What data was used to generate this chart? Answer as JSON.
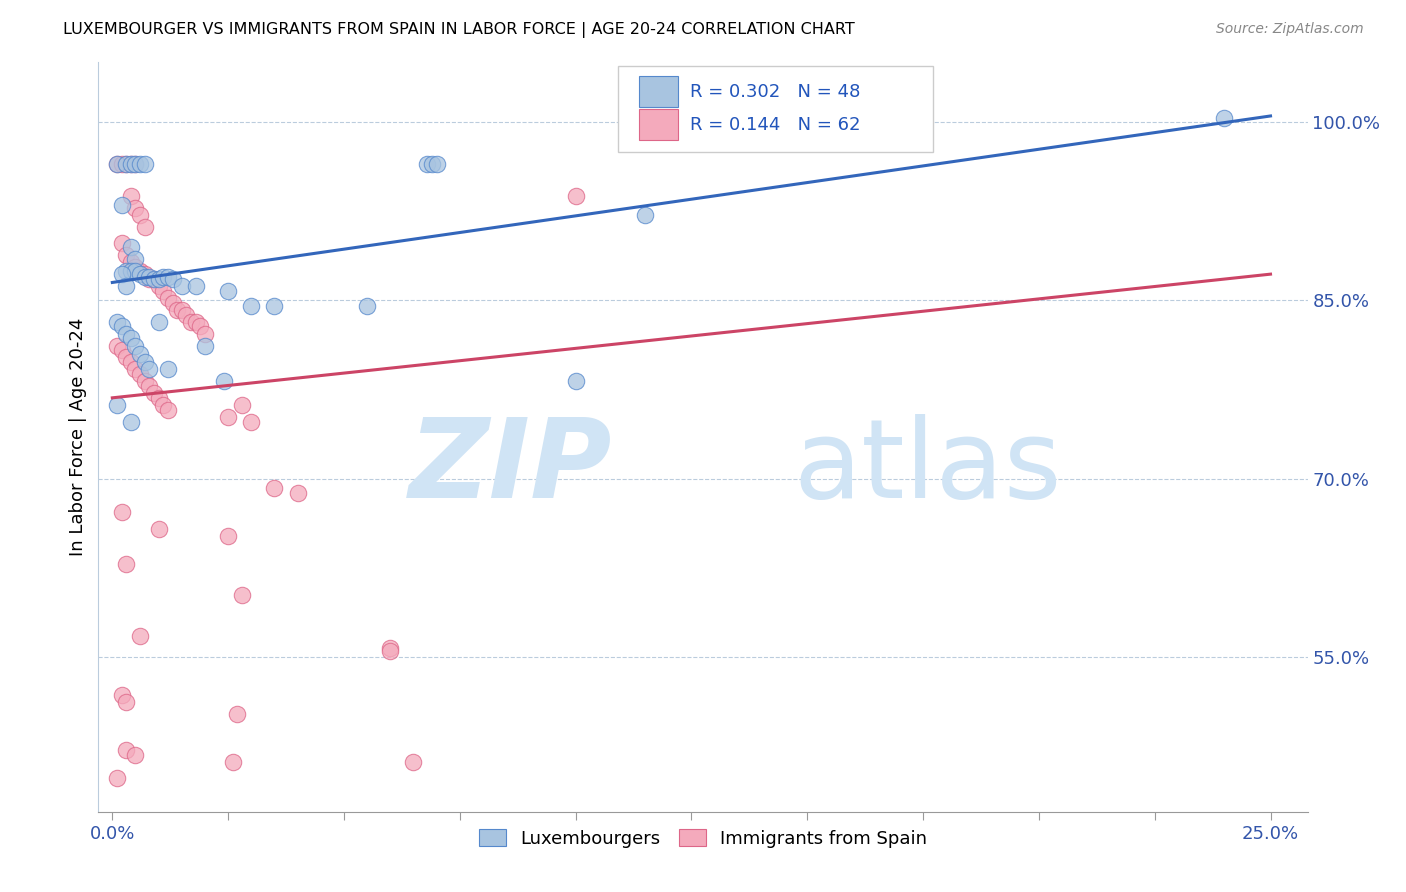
{
  "title": "LUXEMBOURGER VS IMMIGRANTS FROM SPAIN IN LABOR FORCE | AGE 20-24 CORRELATION CHART",
  "source": "Source: ZipAtlas.com",
  "ylabel": "In Labor Force | Age 20-24",
  "ytick_labels": [
    "100.0%",
    "85.0%",
    "70.0%",
    "55.0%"
  ],
  "ytick_values": [
    1.0,
    0.85,
    0.7,
    0.55
  ],
  "xtick_labels": [
    "0.0%",
    "25.0%"
  ],
  "xtick_values": [
    0.0,
    0.25
  ],
  "xlim": [
    -0.003,
    0.258
  ],
  "ylim": [
    0.42,
    1.05
  ],
  "blue_r": 0.302,
  "blue_n": 48,
  "pink_r": 0.144,
  "pink_n": 62,
  "blue_color": "#A8C4E0",
  "pink_color": "#F4AABC",
  "blue_edge_color": "#5588CC",
  "pink_edge_color": "#DD6688",
  "blue_line_color": "#3366BB",
  "pink_line_color": "#CC4466",
  "watermark_zip": "ZIP",
  "watermark_atlas": "atlas",
  "watermark_color": "#D0E4F5",
  "legend_label_blue": "Luxembourgers",
  "legend_label_pink": "Immigrants from Spain",
  "blue_line_x": [
    0.0,
    0.25
  ],
  "blue_line_y": [
    0.865,
    1.005
  ],
  "pink_line_x": [
    0.0,
    0.25
  ],
  "pink_line_y": [
    0.768,
    0.872
  ],
  "blue_scatter": [
    [
      0.001,
      0.965
    ],
    [
      0.003,
      0.965
    ],
    [
      0.004,
      0.965
    ],
    [
      0.005,
      0.965
    ],
    [
      0.006,
      0.965
    ],
    [
      0.007,
      0.965
    ],
    [
      0.068,
      0.965
    ],
    [
      0.069,
      0.965
    ],
    [
      0.07,
      0.965
    ],
    [
      0.002,
      0.93
    ],
    [
      0.004,
      0.895
    ],
    [
      0.005,
      0.885
    ],
    [
      0.003,
      0.875
    ],
    [
      0.004,
      0.875
    ],
    [
      0.005,
      0.875
    ],
    [
      0.006,
      0.872
    ],
    [
      0.007,
      0.87
    ],
    [
      0.008,
      0.87
    ],
    [
      0.009,
      0.868
    ],
    [
      0.01,
      0.868
    ],
    [
      0.011,
      0.87
    ],
    [
      0.012,
      0.87
    ],
    [
      0.013,
      0.868
    ],
    [
      0.015,
      0.862
    ],
    [
      0.018,
      0.862
    ],
    [
      0.025,
      0.858
    ],
    [
      0.03,
      0.845
    ],
    [
      0.035,
      0.845
    ],
    [
      0.055,
      0.845
    ],
    [
      0.001,
      0.832
    ],
    [
      0.002,
      0.828
    ],
    [
      0.003,
      0.822
    ],
    [
      0.004,
      0.818
    ],
    [
      0.005,
      0.812
    ],
    [
      0.006,
      0.805
    ],
    [
      0.007,
      0.798
    ],
    [
      0.008,
      0.792
    ],
    [
      0.012,
      0.792
    ],
    [
      0.024,
      0.782
    ],
    [
      0.1,
      0.782
    ],
    [
      0.001,
      0.762
    ],
    [
      0.004,
      0.748
    ],
    [
      0.115,
      0.922
    ],
    [
      0.24,
      1.003
    ],
    [
      0.002,
      0.872
    ],
    [
      0.003,
      0.862
    ],
    [
      0.01,
      0.832
    ],
    [
      0.02,
      0.812
    ]
  ],
  "pink_scatter": [
    [
      0.001,
      0.965
    ],
    [
      0.002,
      0.965
    ],
    [
      0.003,
      0.965
    ],
    [
      0.004,
      0.965
    ],
    [
      0.005,
      0.965
    ],
    [
      0.004,
      0.938
    ],
    [
      0.005,
      0.928
    ],
    [
      0.006,
      0.922
    ],
    [
      0.007,
      0.912
    ],
    [
      0.1,
      0.938
    ],
    [
      0.002,
      0.898
    ],
    [
      0.003,
      0.888
    ],
    [
      0.004,
      0.882
    ],
    [
      0.005,
      0.878
    ],
    [
      0.006,
      0.875
    ],
    [
      0.007,
      0.872
    ],
    [
      0.008,
      0.868
    ],
    [
      0.009,
      0.868
    ],
    [
      0.01,
      0.862
    ],
    [
      0.011,
      0.858
    ],
    [
      0.012,
      0.852
    ],
    [
      0.013,
      0.848
    ],
    [
      0.014,
      0.842
    ],
    [
      0.015,
      0.842
    ],
    [
      0.016,
      0.838
    ],
    [
      0.017,
      0.832
    ],
    [
      0.018,
      0.832
    ],
    [
      0.019,
      0.828
    ],
    [
      0.02,
      0.822
    ],
    [
      0.001,
      0.812
    ],
    [
      0.002,
      0.808
    ],
    [
      0.003,
      0.802
    ],
    [
      0.004,
      0.798
    ],
    [
      0.005,
      0.792
    ],
    [
      0.006,
      0.788
    ],
    [
      0.007,
      0.782
    ],
    [
      0.008,
      0.778
    ],
    [
      0.009,
      0.772
    ],
    [
      0.01,
      0.768
    ],
    [
      0.011,
      0.762
    ],
    [
      0.012,
      0.758
    ],
    [
      0.025,
      0.752
    ],
    [
      0.03,
      0.748
    ],
    [
      0.035,
      0.692
    ],
    [
      0.04,
      0.688
    ],
    [
      0.002,
      0.672
    ],
    [
      0.01,
      0.658
    ],
    [
      0.025,
      0.652
    ],
    [
      0.003,
      0.628
    ],
    [
      0.028,
      0.762
    ],
    [
      0.028,
      0.602
    ],
    [
      0.006,
      0.568
    ],
    [
      0.06,
      0.558
    ],
    [
      0.002,
      0.518
    ],
    [
      0.003,
      0.512
    ],
    [
      0.027,
      0.502
    ],
    [
      0.003,
      0.472
    ],
    [
      0.005,
      0.468
    ],
    [
      0.026,
      0.462
    ],
    [
      0.065,
      0.462
    ],
    [
      0.001,
      0.448
    ],
    [
      0.06,
      0.555
    ]
  ]
}
